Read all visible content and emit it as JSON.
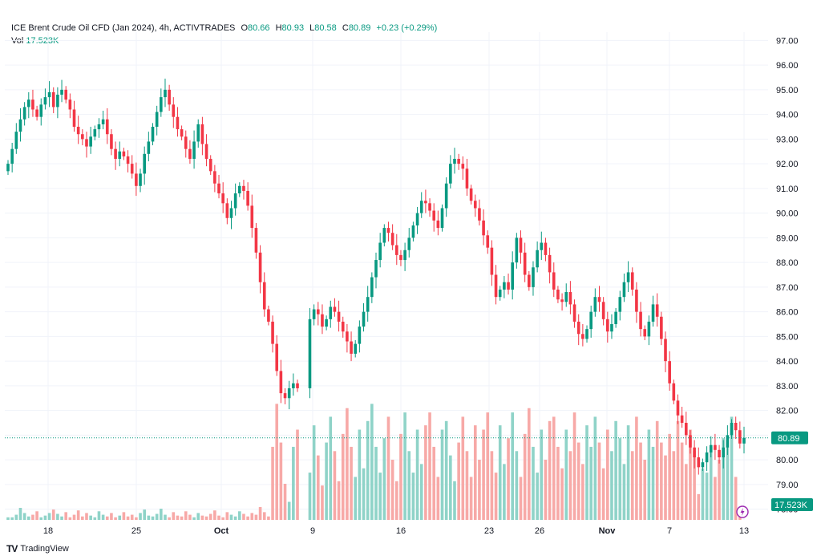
{
  "legend": {
    "symbol": "ICE Brent Crude Oil CFD (Jan 2024), 4h, ACTIVTRADES",
    "o_label": "O",
    "o": "80.66",
    "h_label": "H",
    "h": "80.93",
    "l_label": "L",
    "l": "80.58",
    "c_label": "C",
    "c": "80.89",
    "change": "+0.23 (+0.29%)",
    "vol_label": "Vol",
    "vol": "17.523K"
  },
  "price_tag": "80.89",
  "volume_tag": "17.523K",
  "footer": {
    "brand": "TradingView"
  },
  "colors": {
    "up": "#089981",
    "down": "#f23645",
    "up_vol": "#8fd3c8",
    "down_vol": "#f7a9a7"
  },
  "chart_data": {
    "type": "candlestick",
    "title": "ICE Brent Crude Oil CFD (Jan 2024), 4h, ACTIVTRADES",
    "ylim": [
      77.5,
      97.5
    ],
    "y_ticks": [
      "97.00",
      "96.00",
      "95.00",
      "94.00",
      "93.00",
      "92.00",
      "91.00",
      "90.00",
      "89.00",
      "88.00",
      "87.00",
      "86.00",
      "85.00",
      "84.00",
      "83.00",
      "82.00",
      "81.00",
      "80.00",
      "79.00",
      "78.00"
    ],
    "x_ticks": [
      {
        "label": "18",
        "bold": false
      },
      {
        "label": "25",
        "bold": false
      },
      {
        "label": "Oct",
        "bold": true
      },
      {
        "label": "9",
        "bold": false
      },
      {
        "label": "16",
        "bold": false
      },
      {
        "label": "23",
        "bold": false
      },
      {
        "label": "26",
        "bold": false
      },
      {
        "label": "Nov",
        "bold": true
      },
      {
        "label": "7",
        "bold": false
      },
      {
        "label": "13",
        "bold": false
      }
    ],
    "last_close": 80.89,
    "closes": [
      92.0,
      92.6,
      93.3,
      93.8,
      94.3,
      94.6,
      94.2,
      93.9,
      94.4,
      94.7,
      94.9,
      94.3,
      94.8,
      95.0,
      94.6,
      94.2,
      93.5,
      93.2,
      93.0,
      92.7,
      93.1,
      93.4,
      93.6,
      93.8,
      93.2,
      92.6,
      92.2,
      92.5,
      92.3,
      92.0,
      91.6,
      91.1,
      91.6,
      92.4,
      92.9,
      93.5,
      94.1,
      94.7,
      95.0,
      94.4,
      93.9,
      93.4,
      93.1,
      92.6,
      92.2,
      92.9,
      93.6,
      92.8,
      92.2,
      91.7,
      91.2,
      90.8,
      90.4,
      89.8,
      90.2,
      90.8,
      91.1,
      90.9,
      90.3,
      89.4,
      88.4,
      87.2,
      86.1,
      85.6,
      84.7,
      83.6,
      82.7,
      82.5,
      82.9,
      83.1,
      82.9,
      null,
      null,
      85.7,
      86.1,
      85.9,
      85.4,
      85.7,
      86.2,
      86.0,
      85.6,
      85.2,
      84.8,
      84.3,
      84.7,
      85.4,
      86.0,
      86.6,
      87.4,
      88.1,
      88.8,
      89.4,
      89.2,
      88.7,
      88.3,
      88.1,
      88.5,
      89.0,
      89.5,
      90.0,
      90.5,
      90.4,
      90.1,
      89.7,
      89.4,
      90.2,
      91.2,
      92.0,
      92.2,
      92.0,
      91.8,
      91.0,
      90.5,
      90.2,
      89.7,
      89.1,
      88.6,
      87.5,
      86.6,
      86.9,
      87.2,
      86.9,
      88.0,
      89.0,
      88.4,
      87.5,
      87.0,
      87.8,
      88.5,
      88.8,
      88.3,
      87.6,
      86.9,
      86.5,
      86.4,
      86.8,
      86.3,
      85.6,
      85.1,
      84.9,
      85.3,
      86.0,
      86.6,
      86.4,
      85.7,
      85.2,
      85.5,
      86.0,
      86.6,
      87.2,
      87.6,
      86.9,
      86.0,
      85.3,
      85.0,
      85.6,
      86.3,
      85.8,
      84.9,
      84.0,
      83.1,
      82.4,
      81.8,
      81.5,
      81.0,
      80.5,
      80.1,
      79.7,
      79.9,
      80.3,
      80.6,
      80.4,
      80.1,
      80.5,
      81.0,
      81.5,
      81.2,
      80.66,
      80.89
    ],
    "volumes": [
      0.3,
      0.3,
      0.6,
      1.4,
      0.8,
      0.4,
      0.6,
      1.0,
      0.3,
      0.5,
      0.8,
      1.2,
      0.7,
      0.4,
      0.9,
      0.3,
      0.6,
      1.1,
      0.4,
      0.8,
      0.5,
      0.3,
      1.0,
      0.6,
      0.4,
      0.8,
      0.3,
      0.5,
      0.9,
      0.4,
      0.6,
      0.3,
      0.8,
      1.2,
      0.5,
      0.4,
      0.7,
      1.3,
      0.6,
      0.3,
      0.9,
      0.5,
      0.4,
      1.0,
      0.6,
      0.3,
      0.8,
      0.5,
      0.4,
      0.7,
      1.1,
      0.5,
      0.3,
      0.9,
      0.6,
      0.4,
      1.0,
      0.7,
      0.4,
      0.8,
      0.6,
      1.5,
      0.9,
      0.4,
      8.5,
      13.5,
      9.0,
      4.2,
      2.1,
      8.5,
      10.5,
      0,
      0,
      5.5,
      11.0,
      7.5,
      4.0,
      9.0,
      12.0,
      8.0,
      4.5,
      10.0,
      13.0,
      8.5,
      5.0,
      10.5,
      6.0,
      11.5,
      13.5,
      8.5,
      5.5,
      9.5,
      12.0,
      7.0,
      4.5,
      10.0,
      12.5,
      8.0,
      5.5,
      10.5,
      6.5,
      11.0,
      12.5,
      8.5,
      5.0,
      10.5,
      11.5,
      7.5,
      4.5,
      9.0,
      12.0,
      8.0,
      5.0,
      11.0,
      7.0,
      10.5,
      12.5,
      8.0,
      5.5,
      11.0,
      6.5,
      9.5,
      12.5,
      8.0,
      5.0,
      10.0,
      13.0,
      8.5,
      5.5,
      10.5,
      7.0,
      11.5,
      12.0,
      8.5,
      6.0,
      10.5,
      8.0,
      12.5,
      9.0,
      6.5,
      11.0,
      8.5,
      12.0,
      9.0,
      6.0,
      10.5,
      8.0,
      11.5,
      9.5,
      6.5,
      11.0,
      8.0,
      12.0,
      9.0,
      7.0,
      10.5,
      8.5,
      11.5,
      9.0,
      7.5,
      10.0,
      8.0,
      11.5,
      9.0,
      6.5,
      10.5,
      8.0,
      3.0,
      6.0,
      5.5,
      8.5,
      5.0,
      7.0,
      9.5,
      8.5,
      12.0,
      5.0,
      1.5
    ]
  }
}
